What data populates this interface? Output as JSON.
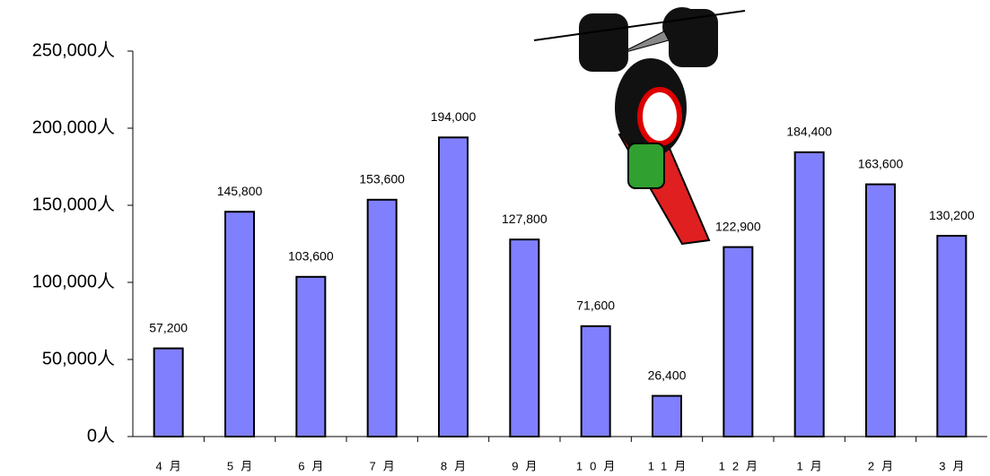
{
  "chart_data": {
    "type": "bar",
    "categories": [
      "4月",
      "5月",
      "6月",
      "7月",
      "8月",
      "9月",
      "10月",
      "11月",
      "12月",
      "1月",
      "2月",
      "3月"
    ],
    "values": [
      57200,
      145800,
      103600,
      153600,
      194000,
      127800,
      71600,
      26400,
      122900,
      184400,
      163600,
      130200
    ],
    "value_labels": [
      "57,200",
      "145,800",
      "103,600",
      "153,600",
      "194,000",
      "127,800",
      "71,600",
      "26,400",
      "122,900",
      "184,400",
      "163,600",
      "130,200"
    ],
    "color": "#8080ff",
    "ylim": [
      0,
      250000
    ],
    "yticks": [
      {
        "value": 0,
        "label": "0人"
      },
      {
        "value": 50000,
        "label": "50,000人"
      },
      {
        "value": 100000,
        "label": "100,000人"
      },
      {
        "value": 150000,
        "label": "150,000人"
      },
      {
        "value": 200000,
        "label": "200,000人"
      },
      {
        "value": 250000,
        "label": "250,000人"
      }
    ],
    "grid": false
  }
}
